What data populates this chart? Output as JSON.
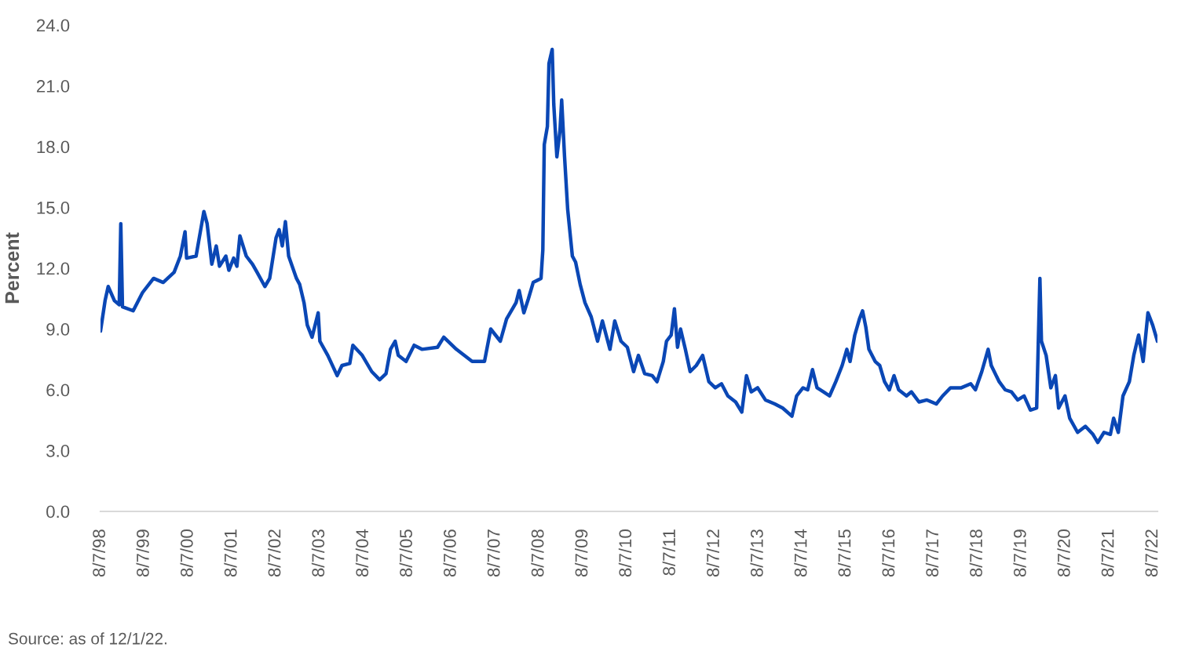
{
  "chart_data": {
    "type": "line",
    "ylabel": "Percent",
    "annotations": [
      "Source: as of 12/1/22."
    ],
    "x": [
      "1998-08-07",
      "1998-09-14",
      "1998-10-10",
      "1998-12-01",
      "1999-01-10",
      "1999-01-23",
      "1999-02-06",
      "1999-05-06",
      "1999-07-23",
      "1999-10-23",
      "2000-01-11",
      "2000-04-11",
      "2000-06-02",
      "2000-07-11",
      "2000-07-24",
      "2000-10-11",
      "2000-12-15",
      "2001-01-11",
      "2001-02-19",
      "2001-03-28",
      "2001-04-24",
      "2001-06-16",
      "2001-07-11",
      "2001-08-20",
      "2001-09-16",
      "2001-10-11",
      "2001-12-03",
      "2002-01-24",
      "2002-03-03",
      "2002-05-07",
      "2002-06-16",
      "2002-08-08",
      "2002-09-03",
      "2002-09-29",
      "2002-10-25",
      "2002-11-21",
      "2003-01-25",
      "2003-02-21",
      "2003-03-29",
      "2003-04-25",
      "2003-06-04",
      "2003-07-25",
      "2003-08-08",
      "2003-10-13",
      "2003-12-30",
      "2004-02-08",
      "2004-04-13",
      "2004-05-09",
      "2004-07-26",
      "2004-10-13",
      "2004-12-18",
      "2005-02-09",
      "2005-03-18",
      "2005-04-26",
      "2005-05-22",
      "2005-07-26",
      "2005-10-01",
      "2005-12-05",
      "2006-04-14",
      "2006-06-05",
      "2006-09-18",
      "2007-01-27",
      "2007-05-10",
      "2007-07-01",
      "2007-09-19",
      "2007-11-10",
      "2008-01-28",
      "2008-02-23",
      "2008-04-02",
      "2008-05-10",
      "2008-06-19",
      "2008-08-23",
      "2008-09-07",
      "2008-09-19",
      "2008-10-15",
      "2008-10-28",
      "2008-11-24",
      "2008-12-07",
      "2009-01-02",
      "2009-01-28",
      "2009-02-11",
      "2009-03-07",
      "2009-04-02",
      "2009-05-11",
      "2009-06-07",
      "2009-07-15",
      "2009-08-24",
      "2009-10-15",
      "2009-12-07",
      "2010-01-16",
      "2010-03-20",
      "2010-04-29",
      "2010-06-20",
      "2010-08-12",
      "2010-10-03",
      "2010-11-12",
      "2011-01-03",
      "2011-03-07",
      "2011-04-16",
      "2011-06-07",
      "2011-07-04",
      "2011-08-12",
      "2011-09-08",
      "2011-10-04",
      "2011-10-29",
      "2011-12-08",
      "2012-01-17",
      "2012-03-08",
      "2012-04-30",
      "2012-06-21",
      "2012-08-13",
      "2012-10-04",
      "2012-11-26",
      "2013-01-30",
      "2013-03-22",
      "2013-04-30",
      "2013-06-09",
      "2013-08-01",
      "2013-10-05",
      "2013-12-22",
      "2014-02-26",
      "2014-05-14",
      "2014-06-22",
      "2014-08-14",
      "2014-09-22",
      "2014-11-01",
      "2014-12-09",
      "2015-02-01",
      "2015-03-23",
      "2015-05-14",
      "2015-07-06",
      "2015-08-14",
      "2015-09-10",
      "2015-10-19",
      "2015-11-27",
      "2015-12-23",
      "2016-01-19",
      "2016-02-14",
      "2016-04-06",
      "2016-05-14",
      "2016-06-23",
      "2016-08-02",
      "2016-09-10",
      "2016-10-19",
      "2016-12-23",
      "2017-02-02",
      "2017-04-06",
      "2017-06-11",
      "2017-08-28",
      "2017-10-20",
      "2017-12-24",
      "2018-03-24",
      "2018-06-11",
      "2018-07-20",
      "2018-09-11",
      "2018-11-03",
      "2018-11-29",
      "2019-02-03",
      "2019-03-25",
      "2019-05-16",
      "2019-07-07",
      "2019-08-29",
      "2019-10-21",
      "2019-12-12",
      "2020-01-08",
      "2020-01-21",
      "2020-02-29",
      "2020-04-08",
      "2020-05-16",
      "2020-06-12",
      "2020-08-04",
      "2020-09-12",
      "2020-11-17",
      "2021-01-21",
      "2021-03-25",
      "2021-05-04",
      "2021-06-25",
      "2021-08-17",
      "2021-09-13",
      "2021-10-22",
      "2021-11-30",
      "2022-01-22",
      "2022-02-28",
      "2022-04-09",
      "2022-05-17",
      "2022-06-26",
      "2022-08-04",
      "2022-09-13"
    ],
    "series": [
      {
        "color": "#0a47b5",
        "values": [
          8.9,
          10.4,
          11.1,
          10.4,
          10.2,
          14.2,
          10.1,
          9.9,
          10.8,
          11.5,
          11.3,
          11.8,
          12.6,
          13.8,
          12.5,
          12.6,
          14.8,
          14.2,
          12.2,
          13.1,
          12.1,
          12.6,
          11.9,
          12.5,
          12.1,
          13.6,
          12.6,
          12.2,
          11.8,
          11.1,
          11.5,
          13.5,
          13.9,
          13.1,
          14.3,
          12.6,
          11.5,
          11.2,
          10.3,
          9.2,
          8.6,
          9.8,
          8.4,
          7.7,
          6.7,
          7.2,
          7.3,
          8.2,
          7.7,
          6.9,
          6.5,
          6.8,
          8.0,
          8.4,
          7.7,
          7.4,
          8.2,
          8.0,
          8.1,
          8.6,
          8.0,
          7.4,
          7.4,
          9.0,
          8.4,
          9.5,
          10.3,
          10.9,
          9.8,
          10.5,
          11.3,
          11.5,
          12.9,
          18.1,
          19.0,
          22.1,
          22.8,
          20.1,
          17.5,
          18.8,
          20.3,
          17.5,
          14.9,
          12.6,
          12.3,
          11.2,
          10.3,
          9.6,
          8.4,
          9.4,
          8.0,
          9.4,
          8.4,
          8.1,
          6.9,
          7.7,
          6.8,
          6.7,
          6.4,
          7.4,
          8.4,
          8.7,
          10.0,
          8.1,
          9.0,
          8.0,
          6.9,
          7.2,
          7.7,
          6.4,
          6.1,
          6.3,
          5.7,
          5.4,
          4.9,
          6.7,
          5.9,
          6.1,
          5.5,
          5.3,
          5.1,
          4.7,
          5.7,
          6.1,
          6.0,
          7.0,
          6.1,
          5.9,
          5.7,
          6.4,
          7.2,
          8.0,
          7.4,
          8.7,
          9.5,
          9.9,
          9.1,
          8.0,
          7.4,
          7.2,
          6.4,
          6.0,
          6.7,
          6.0,
          5.7,
          5.9,
          5.4,
          5.5,
          5.3,
          5.7,
          6.1,
          6.1,
          6.3,
          6.0,
          6.9,
          8.0,
          7.2,
          6.4,
          6.0,
          5.9,
          5.5,
          5.7,
          5.0,
          5.1,
          11.5,
          8.4,
          7.7,
          6.1,
          6.7,
          5.1,
          5.7,
          4.6,
          3.9,
          4.2,
          3.8,
          3.4,
          3.9,
          3.8,
          4.6,
          3.9,
          5.7,
          6.4,
          7.7,
          8.7,
          7.4,
          9.8,
          9.2,
          8.4
        ]
      }
    ],
    "xlim": [
      "1998-08-07",
      "2022-09-13"
    ],
    "xticks": [
      {
        "value": "1998-08-07",
        "label": "8/7/98"
      },
      {
        "value": "1999-08-07",
        "label": "8/7/99"
      },
      {
        "value": "2000-08-07",
        "label": "8/7/00"
      },
      {
        "value": "2001-08-07",
        "label": "8/7/01"
      },
      {
        "value": "2002-08-07",
        "label": "8/7/02"
      },
      {
        "value": "2003-08-07",
        "label": "8/7/03"
      },
      {
        "value": "2004-08-07",
        "label": "8/7/04"
      },
      {
        "value": "2005-08-07",
        "label": "8/7/05"
      },
      {
        "value": "2006-08-07",
        "label": "8/7/06"
      },
      {
        "value": "2007-08-07",
        "label": "8/7/07"
      },
      {
        "value": "2008-08-07",
        "label": "8/7/08"
      },
      {
        "value": "2009-08-07",
        "label": "8/7/09"
      },
      {
        "value": "2010-08-07",
        "label": "8/7/10"
      },
      {
        "value": "2011-08-07",
        "label": "8/7/11"
      },
      {
        "value": "2012-08-07",
        "label": "8/7/12"
      },
      {
        "value": "2013-08-07",
        "label": "8/7/13"
      },
      {
        "value": "2014-08-07",
        "label": "8/7/14"
      },
      {
        "value": "2015-08-07",
        "label": "8/7/15"
      },
      {
        "value": "2016-08-07",
        "label": "8/7/16"
      },
      {
        "value": "2017-08-07",
        "label": "8/7/17"
      },
      {
        "value": "2018-08-07",
        "label": "8/7/18"
      },
      {
        "value": "2019-08-07",
        "label": "8/7/19"
      },
      {
        "value": "2020-08-07",
        "label": "8/7/20"
      },
      {
        "value": "2021-08-07",
        "label": "8/7/21"
      },
      {
        "value": "2022-08-07",
        "label": "8/7/22"
      }
    ],
    "ylim": [
      0,
      24
    ],
    "yticks": [
      {
        "value": 0,
        "label": "0.0"
      },
      {
        "value": 3,
        "label": "3.0"
      },
      {
        "value": 6,
        "label": "6.0"
      },
      {
        "value": 9,
        "label": "9.0"
      },
      {
        "value": 12,
        "label": "12.0"
      },
      {
        "value": 15,
        "label": "15.0"
      },
      {
        "value": 18,
        "label": "18.0"
      },
      {
        "value": 21,
        "label": "21.0"
      },
      {
        "value": 24,
        "label": "24.0"
      }
    ],
    "grid": false,
    "marker": "none",
    "line_style": "solid"
  }
}
